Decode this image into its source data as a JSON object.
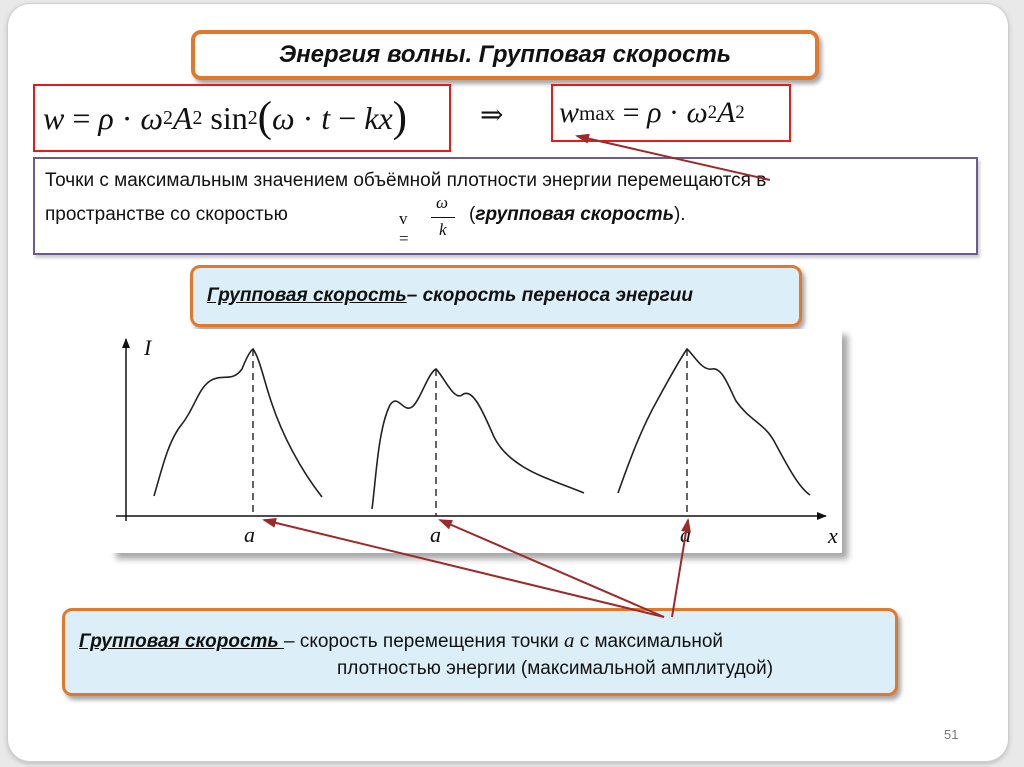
{
  "title": "Энергия волны. Групповая скорость",
  "formula1": {
    "w": "w",
    "eq": "=",
    "rho": "ρ",
    "dot": "·",
    "omega": "ω",
    "exp2": "2",
    "A": "A",
    "sin": "sin",
    "lparen": "(",
    "omega_t": "ω",
    "t": "t",
    "minus": "−",
    "kx": "kx",
    "rparen": ")"
  },
  "implies": "⇒",
  "formula2": {
    "w": "w",
    "sub": "max",
    "eq": "=",
    "rho": "ρ",
    "dot": "·",
    "omega": "ω",
    "exp2": "2",
    "A": "A"
  },
  "text_box": {
    "line1": "Точки с максимальным значением  объёмной плотности энергии     перемещаются в",
    "line2": "пространстве со скоростью",
    "v": "v",
    "eq": "=",
    "num": "ω",
    "den": "k",
    "paren_open": "(",
    "paren_term": "групповая скорость",
    "paren_close": ")."
  },
  "definition1": {
    "term": "Групповая скорость ",
    "rest": " – скорость переноса энергии"
  },
  "plot": {
    "y_label": "I",
    "x_label": "x",
    "point_labels": [
      "a",
      "a",
      "a"
    ]
  },
  "definition2": {
    "term": "Групповая скорость ",
    "rest1": " – скорость перемещения точки ",
    "var": "a",
    "rest2": "  с максимальной",
    "line2": "плотностью энергии (максимальной амплитудой)"
  },
  "page_number": "51",
  "colors": {
    "orange_border": "#e0792b",
    "red_border": "#e31b1b",
    "purple_border": "#6d5a8f",
    "definition_fill": "#dceff8",
    "arrow": "#9b2a2a"
  }
}
